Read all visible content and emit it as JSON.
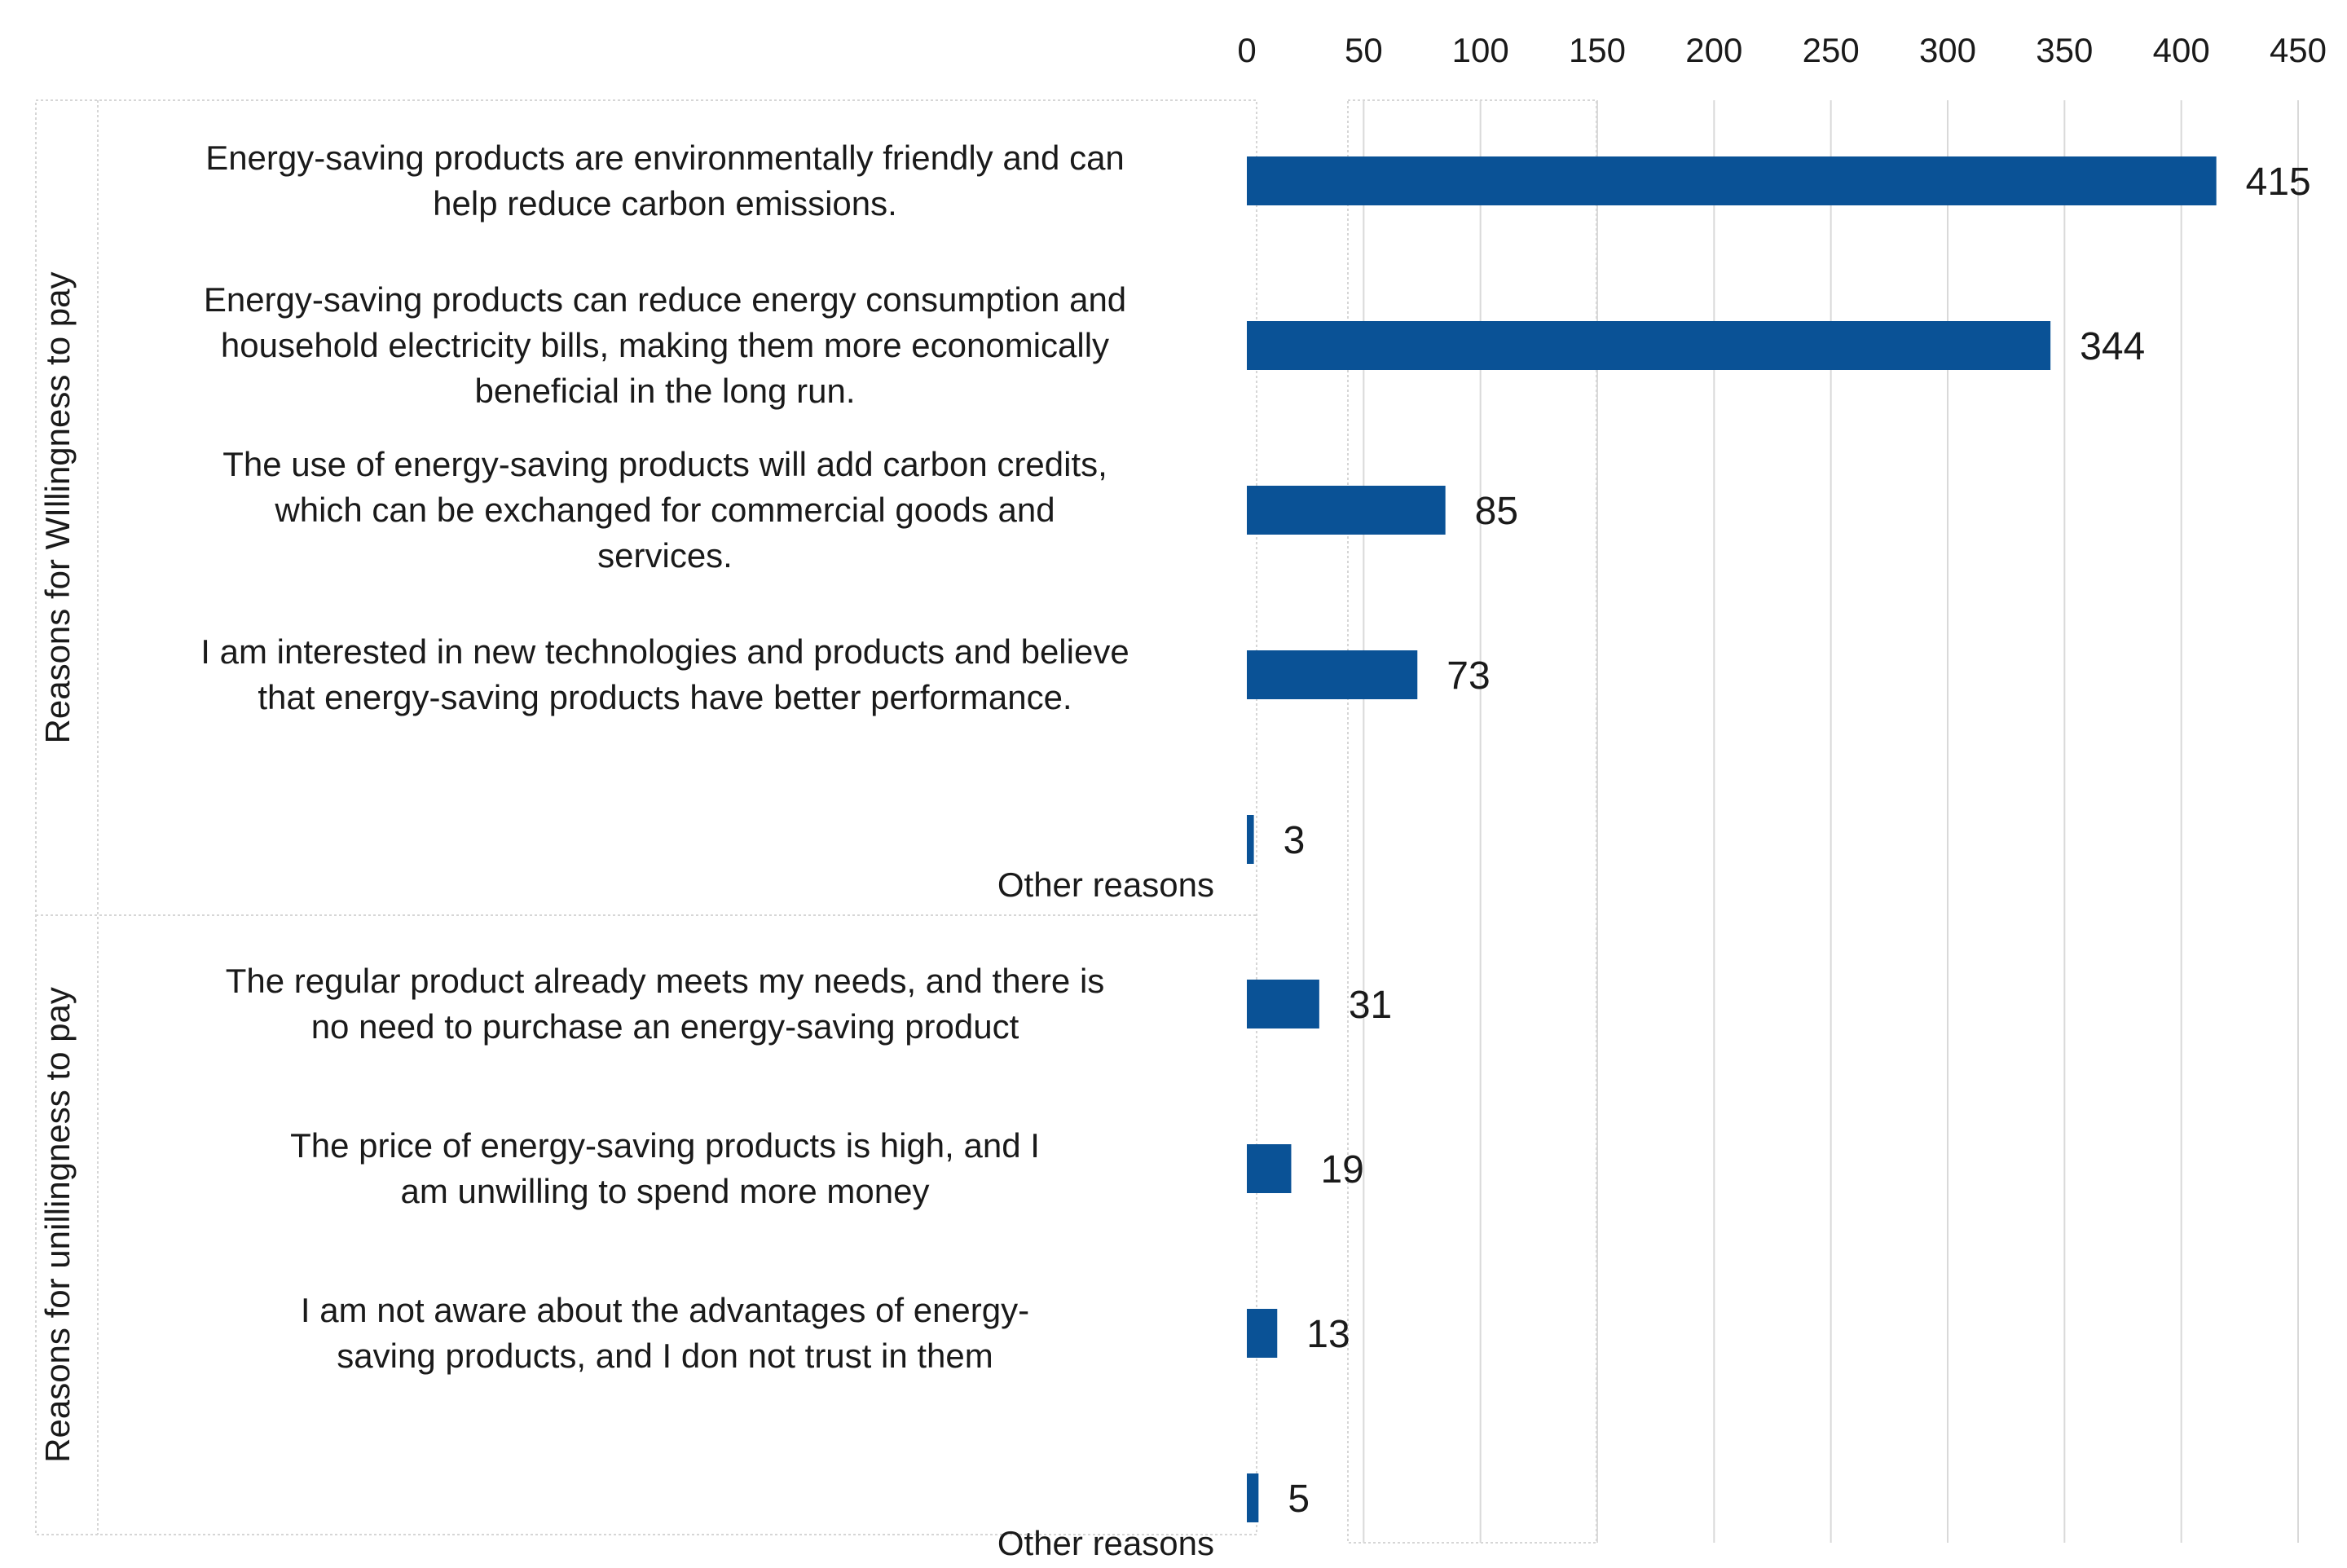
{
  "chart_data": {
    "type": "bar",
    "orientation": "horizontal",
    "title": "",
    "xlabel": "",
    "ylabel": "",
    "xlim": [
      0,
      450
    ],
    "xticks": [
      0,
      50,
      100,
      150,
      200,
      250,
      300,
      350,
      400,
      450
    ],
    "tick_labels": [
      "0",
      "50",
      "100",
      "150",
      "200",
      "250",
      "300",
      "350",
      "400",
      "450"
    ],
    "bar_color": "#0a5296",
    "groups": [
      {
        "name": "Reasons for WIllingness to pay",
        "items": [
          {
            "label_lines": [
              "Energy-saving products are environmentally friendly and can",
              "help reduce carbon emissions."
            ],
            "value": 415,
            "value_label": "415"
          },
          {
            "label_lines": [
              "Energy-saving products can reduce energy consumption and",
              "household electricity bills, making them more economically",
              "beneficial in the long run."
            ],
            "value": 344,
            "value_label": "344"
          },
          {
            "label_lines": [
              "The use of energy-saving products will add carbon credits,",
              "which can be exchanged for commercial goods and",
              "services."
            ],
            "value": 85,
            "value_label": "85"
          },
          {
            "label_lines": [
              "I am interested in new technologies and products and believe",
              "that energy-saving products have better performance."
            ],
            "value": 73,
            "value_label": "73"
          },
          {
            "label_lines": [
              "Other reasons"
            ],
            "value": 3,
            "value_label": "3"
          }
        ]
      },
      {
        "name": "Reasons for unillingness to pay",
        "items": [
          {
            "label_lines": [
              "The regular product already meets my needs, and there is",
              "no need to purchase an energy-saving product"
            ],
            "value": 31,
            "value_label": "31"
          },
          {
            "label_lines": [
              "The price of energy-saving products is high, and I",
              "am unwilling to spend more money"
            ],
            "value": 19,
            "value_label": "19"
          },
          {
            "label_lines": [
              "I am not aware about the advantages of energy-",
              "saving products, and I don not trust in them"
            ],
            "value": 13,
            "value_label": "13"
          },
          {
            "label_lines": [
              "Other reasons"
            ],
            "value": 5,
            "value_label": "5"
          }
        ]
      }
    ]
  }
}
